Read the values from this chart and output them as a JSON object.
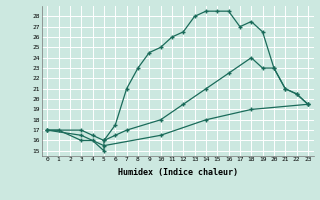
{
  "title": "",
  "xlabel": "Humidex (Indice chaleur)",
  "ylabel": "",
  "background_color": "#cce8e0",
  "grid_color": "#ffffff",
  "line_color": "#1a6b5a",
  "xlim": [
    -0.5,
    23.5
  ],
  "ylim": [
    14.5,
    29.0
  ],
  "xticks": [
    0,
    1,
    2,
    3,
    4,
    5,
    6,
    7,
    8,
    9,
    10,
    11,
    12,
    13,
    14,
    15,
    16,
    17,
    18,
    19,
    20,
    21,
    22,
    23
  ],
  "yticks": [
    15,
    16,
    17,
    18,
    19,
    20,
    21,
    22,
    23,
    24,
    25,
    26,
    27,
    28
  ],
  "line1_x": [
    0,
    1,
    3,
    4,
    5,
    5,
    6,
    7,
    8,
    9,
    10,
    11,
    12,
    13,
    14,
    15,
    16,
    17,
    18,
    19,
    20,
    21,
    22,
    23
  ],
  "line1_y": [
    17,
    17,
    16,
    16,
    15,
    16,
    17.5,
    21,
    23,
    24.5,
    25,
    26,
    26.5,
    28,
    28.5,
    28.5,
    28.5,
    27,
    27.5,
    26.5,
    23,
    21,
    20.5,
    19.5
  ],
  "line2_x": [
    0,
    3,
    4,
    5,
    6,
    7,
    10,
    12,
    14,
    16,
    18,
    19,
    20,
    21,
    22,
    23
  ],
  "line2_y": [
    17,
    17,
    16.5,
    16,
    16.5,
    17,
    18,
    19.5,
    21,
    22.5,
    24,
    23,
    23,
    21,
    20.5,
    19.5
  ],
  "line3_x": [
    0,
    3,
    5,
    10,
    14,
    18,
    23
  ],
  "line3_y": [
    17,
    16.5,
    15.5,
    16.5,
    18,
    19,
    19.5
  ]
}
